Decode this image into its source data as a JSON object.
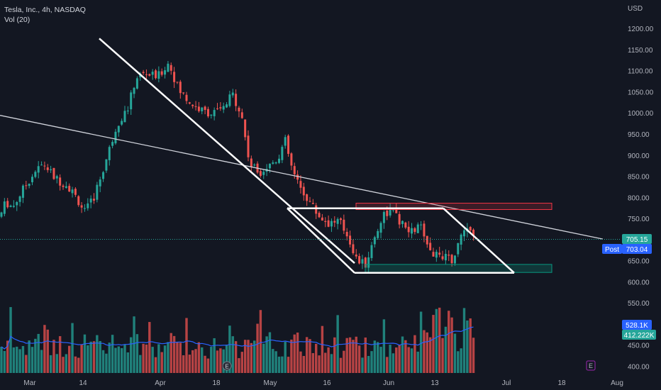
{
  "header": {
    "symbol": "Tesla, Inc., 4h, NASDAQ",
    "indicator": "Vol (20)",
    "currency": "USD"
  },
  "badges": {
    "last_price": "705.15",
    "post_label": "Post",
    "post_price": "703.04",
    "vol_ma": "528.1K",
    "vol_last": "412.222K"
  },
  "icons": {
    "event_marker": "E",
    "earnings_marker": "E"
  },
  "colors": {
    "background": "#131722",
    "up": "#26a69a",
    "down": "#ef5350",
    "trendline": "#ffffff",
    "long_trendline": "#d1d4dc",
    "resistance_zone": "#f23645",
    "support_zone": "#089981",
    "post_badge": "#2962ff",
    "vol_ma_line": "#2962ff"
  },
  "chart_data": {
    "type": "candlestick",
    "title": "Tesla, Inc., 4h, NASDAQ",
    "y_axis": {
      "ticks": [
        400,
        450,
        500,
        550,
        600,
        650,
        700,
        750,
        800,
        850,
        900,
        950,
        1000,
        1050,
        1100,
        1150,
        1200
      ],
      "range": [
        385,
        1235
      ],
      "unit": "USD"
    },
    "x_axis": {
      "labels": [
        "Mar",
        "14",
        "Apr",
        "18",
        "May",
        "16",
        "Jun",
        "13",
        "Jul",
        "18",
        "Aug"
      ]
    },
    "price_path": [
      {
        "t": 0,
        "p": 755
      },
      {
        "t": 8,
        "p": 790
      },
      {
        "t": 18,
        "p": 778
      },
      {
        "t": 32,
        "p": 818
      },
      {
        "t": 48,
        "p": 860
      },
      {
        "t": 62,
        "p": 880
      },
      {
        "t": 78,
        "p": 845
      },
      {
        "t": 95,
        "p": 830
      },
      {
        "t": 108,
        "p": 800
      },
      {
        "t": 120,
        "p": 765
      },
      {
        "t": 132,
        "p": 800
      },
      {
        "t": 148,
        "p": 880
      },
      {
        "t": 165,
        "p": 975
      },
      {
        "t": 180,
        "p": 1010
      },
      {
        "t": 192,
        "p": 1085
      },
      {
        "t": 205,
        "p": 1095
      },
      {
        "t": 222,
        "p": 1085
      },
      {
        "t": 238,
        "p": 1120
      },
      {
        "t": 252,
        "p": 1055
      },
      {
        "t": 268,
        "p": 1025
      },
      {
        "t": 285,
        "p": 1005
      },
      {
        "t": 300,
        "p": 1000
      },
      {
        "t": 315,
        "p": 1010
      },
      {
        "t": 328,
        "p": 1045
      },
      {
        "t": 340,
        "p": 1000
      },
      {
        "t": 352,
        "p": 880
      },
      {
        "t": 365,
        "p": 860
      },
      {
        "t": 378,
        "p": 875
      },
      {
        "t": 392,
        "p": 895
      },
      {
        "t": 402,
        "p": 935
      },
      {
        "t": 412,
        "p": 865
      },
      {
        "t": 422,
        "p": 825
      },
      {
        "t": 435,
        "p": 795
      },
      {
        "t": 448,
        "p": 760
      },
      {
        "t": 462,
        "p": 740
      },
      {
        "t": 478,
        "p": 745
      },
      {
        "t": 492,
        "p": 705
      },
      {
        "t": 502,
        "p": 655
      },
      {
        "t": 515,
        "p": 640
      },
      {
        "t": 528,
        "p": 705
      },
      {
        "t": 540,
        "p": 760
      },
      {
        "t": 552,
        "p": 770
      },
      {
        "t": 565,
        "p": 740
      },
      {
        "t": 578,
        "p": 715
      },
      {
        "t": 592,
        "p": 735
      },
      {
        "t": 602,
        "p": 700
      },
      {
        "t": 612,
        "p": 660
      },
      {
        "t": 625,
        "p": 665
      },
      {
        "t": 638,
        "p": 650
      },
      {
        "t": 650,
        "p": 705
      },
      {
        "t": 658,
        "p": 730
      },
      {
        "t": 668,
        "p": 705
      }
    ],
    "volume_scale_k": [
      0,
      1000
    ],
    "drawings": {
      "falling_trendline": [
        {
          "t": 140,
          "p": 1177
        },
        {
          "t": 500,
          "p": 645
        }
      ],
      "long_trendline": [
        {
          "t": 0,
          "p": 995
        },
        {
          "t": 850,
          "p": 702
        }
      ],
      "flag_top": [
        {
          "t": 405,
          "p": 775
        },
        {
          "t": 625,
          "p": 775
        }
      ],
      "flag_bottom": [
        {
          "t": 500,
          "p": 622
        },
        {
          "t": 725,
          "p": 622
        }
      ],
      "flag_left": [
        {
          "t": 405,
          "p": 775
        },
        {
          "t": 500,
          "p": 622
        }
      ],
      "flag_right": [
        {
          "t": 625,
          "p": 775
        },
        {
          "t": 725,
          "p": 622
        }
      ],
      "resistance_zone": {
        "t0": 502,
        "t1": 778,
        "p0": 772,
        "p1": 787
      },
      "support_zone": {
        "t0": 515,
        "t1": 778,
        "p0": 623,
        "p1": 642
      }
    },
    "grid": false
  }
}
